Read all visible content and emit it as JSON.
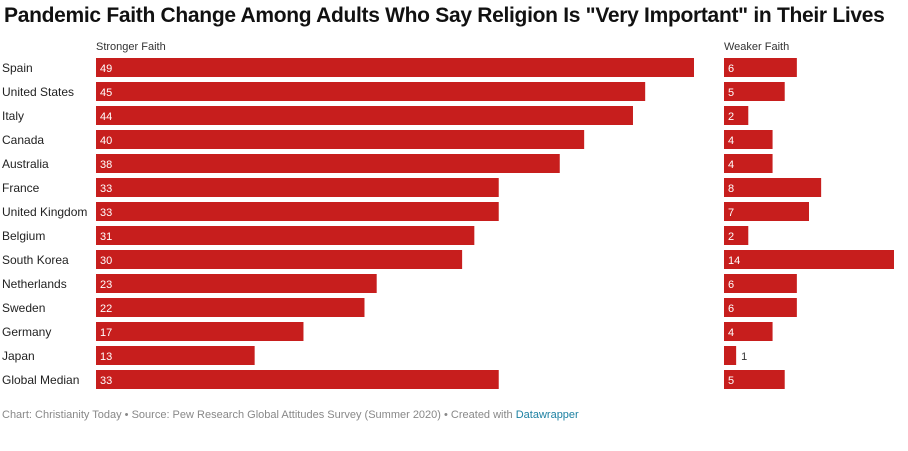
{
  "chart_data": {
    "type": "bar",
    "title": "Pandemic Faith Change Among Adults Who Say Religion Is \"Very Important\" in Their Lives",
    "categories": [
      "Spain",
      "United States",
      "Italy",
      "Canada",
      "Australia",
      "France",
      "United Kingdom",
      "Belgium",
      "South Korea",
      "Netherlands",
      "Sweden",
      "Germany",
      "Japan",
      "Global Median"
    ],
    "series": [
      {
        "name": "Stronger Faith",
        "values": [
          49,
          45,
          44,
          40,
          38,
          33,
          33,
          31,
          30,
          23,
          22,
          17,
          13,
          33
        ]
      },
      {
        "name": "Weaker Faith",
        "values": [
          6,
          5,
          2,
          4,
          4,
          8,
          7,
          2,
          14,
          6,
          6,
          4,
          1,
          5
        ]
      }
    ],
    "bar_color": "#c71e1d"
  },
  "footer": {
    "source_text": "Chart: Christianity Today • Source: Pew Research Global Attitudes Survey (Summer 2020) • Created with ",
    "link_text": "Datawrapper"
  }
}
